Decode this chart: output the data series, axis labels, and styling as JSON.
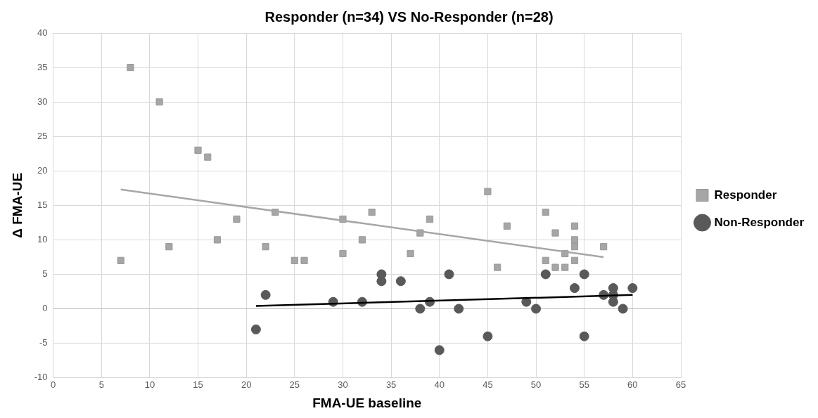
{
  "chart_data": {
    "type": "scatter",
    "title": "Responder (n=34) VS No-Responder (n=28)",
    "xlabel": "FMA-UE baseline",
    "ylabel": "Δ FMA-UE",
    "xlim": [
      0,
      65
    ],
    "xticks": [
      0,
      5,
      10,
      15,
      20,
      25,
      30,
      35,
      40,
      45,
      50,
      55,
      60,
      65
    ],
    "ylim": [
      -10,
      40
    ],
    "yticks": [
      -10,
      -5,
      0,
      5,
      10,
      15,
      20,
      25,
      30,
      35,
      40
    ],
    "grid": true,
    "legend": "right",
    "series": [
      {
        "name": "Responder",
        "color": "#a6a6a6",
        "marker": "square",
        "x": [
          7,
          8,
          11,
          12,
          15,
          16,
          17,
          19,
          22,
          23,
          25,
          26,
          30,
          30,
          32,
          33,
          37,
          38,
          39,
          45,
          46,
          47,
          51,
          51,
          52,
          52,
          53,
          53,
          54,
          54,
          54,
          54,
          57
        ],
        "values": [
          7,
          35,
          30,
          9,
          23,
          22,
          10,
          13,
          9,
          14,
          7,
          7,
          13,
          8,
          10,
          14,
          8,
          11,
          13,
          17,
          6,
          12,
          14,
          7,
          11,
          6,
          8,
          6,
          12,
          10,
          9,
          7,
          9
        ]
      },
      {
        "name": "Non-Responder",
        "color": "#595959",
        "marker": "circle",
        "x": [
          21,
          22,
          29,
          32,
          34,
          34,
          36,
          38,
          39,
          40,
          41,
          42,
          45,
          49,
          50,
          51,
          54,
          55,
          55,
          57,
          58,
          58,
          58,
          59,
          60
        ],
        "values": [
          -3,
          2,
          1,
          1,
          5,
          4,
          4,
          0,
          1,
          -6,
          5,
          0,
          -4,
          1,
          0,
          5,
          3,
          5,
          -4,
          2,
          3,
          2,
          1,
          0,
          3
        ]
      },
      {
        "type": "line",
        "color": "#a6a6a6",
        "marker": "none",
        "x": [
          7,
          57
        ],
        "values": [
          17.3,
          7.5
        ]
      },
      {
        "type": "line",
        "color": "#000000",
        "marker": "none",
        "x": [
          21,
          60
        ],
        "values": [
          0.4,
          2.0
        ]
      }
    ]
  }
}
